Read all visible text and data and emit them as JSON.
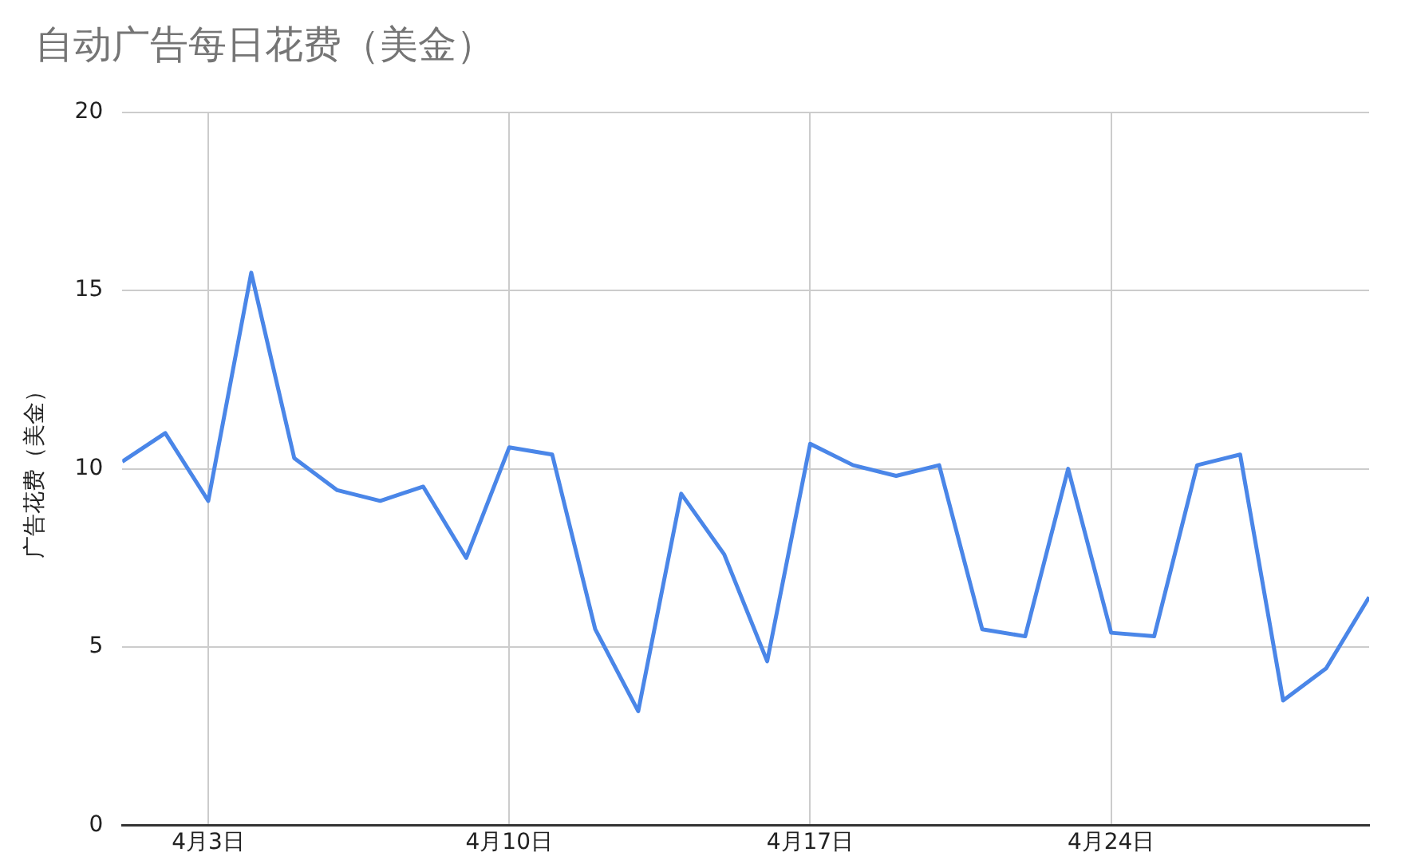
{
  "chart_data": {
    "type": "line",
    "title": "自动广告每日花费（美金）",
    "ylabel": "广告花费（美金）",
    "x": [
      "--04-01",
      "--04-02",
      "--04-03",
      "--04-04",
      "--04-05",
      "--04-06",
      "--04-07",
      "--04-08",
      "--04-09",
      "--04-10",
      "--04-11",
      "--04-12",
      "--04-13",
      "--04-14",
      "--04-15",
      "--04-16",
      "--04-17",
      "--04-18",
      "--04-19",
      "--04-20",
      "--04-21",
      "--04-22",
      "--04-23",
      "--04-24",
      "--04-25",
      "--04-26",
      "--04-27",
      "--04-28",
      "--04-29",
      "--04-30"
    ],
    "series": [
      {
        "color": "#4a86e8",
        "values": [
          10.2,
          11.0,
          9.1,
          15.5,
          10.3,
          9.4,
          9.1,
          9.5,
          7.5,
          10.6,
          10.4,
          5.5,
          3.2,
          9.3,
          7.6,
          4.6,
          10.7,
          10.1,
          9.8,
          10.1,
          5.5,
          5.3,
          10.0,
          5.4,
          5.3,
          10.1,
          10.4,
          3.5,
          4.4,
          6.4
        ]
      }
    ],
    "xlim": [
      "--04-01",
      "--04-30"
    ],
    "xticks": [
      {
        "value": "--04-03",
        "label": "4月3日"
      },
      {
        "value": "--04-10",
        "label": "4月10日"
      },
      {
        "value": "--04-17",
        "label": "4月17日"
      },
      {
        "value": "--04-24",
        "label": "4月24日"
      }
    ],
    "ylim": [
      0,
      20
    ],
    "yticks": [
      0,
      5,
      10,
      15,
      20
    ],
    "grid": true,
    "legend": false,
    "marker": "none",
    "line_style": "solid"
  }
}
